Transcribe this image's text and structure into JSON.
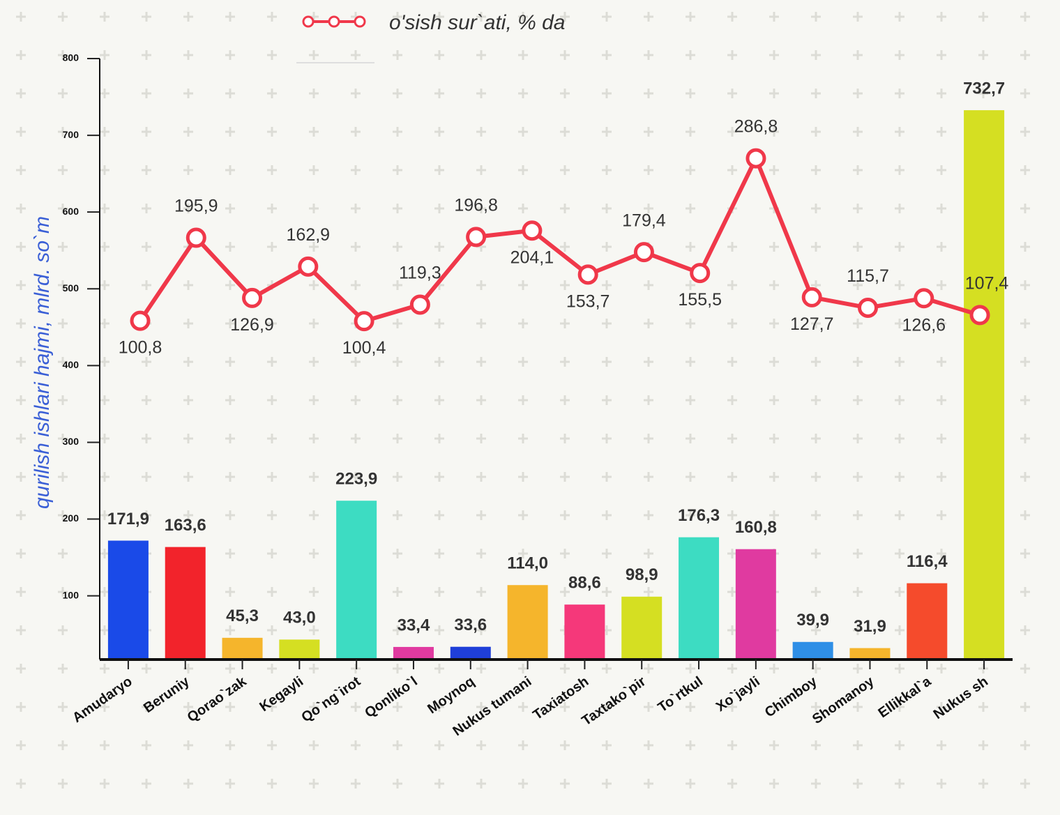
{
  "chart_data": {
    "type": "bar_line",
    "y_axis_label": "qurilish ishlari hajmi, mlrd. so`m",
    "categories": [
      "Amudaryo",
      "Beruniy",
      "Qorao`zak",
      "Kegayli",
      "Qo`ng`irot",
      "Qonliko`l",
      "Moynoq",
      "Nukus tumani",
      "Taxiatosh",
      "Taxtako`pir",
      "To`rtkul",
      "Xo`jayli",
      "Chimboy",
      "Shomanoy",
      "Ellikkal`a",
      "Nukus sh"
    ],
    "ylim": [
      17,
      800
    ],
    "yticks": [
      100,
      200,
      300,
      400,
      500,
      600,
      700,
      800
    ],
    "y2lim": [
      -287,
      401
    ],
    "legend": "top",
    "series": [
      {
        "type": "bar",
        "colors": [
          "#1a4ae8",
          "#f2232b",
          "#f5b52c",
          "#d5df22",
          "#3ddcc2",
          "#e03aa0",
          "#1f3fd8",
          "#f5b52c",
          "#f5387a",
          "#d5df22",
          "#3ddcc2",
          "#e03aa0",
          "#2f8fe6",
          "#f5b52c",
          "#f54b2c",
          "#d5df22"
        ],
        "values": [
          171.9,
          163.6,
          45.3,
          43.0,
          223.9,
          33.4,
          33.6,
          114.0,
          88.6,
          98.9,
          176.3,
          160.8,
          39.9,
          31.9,
          116.4,
          732.7
        ],
        "value_labels": [
          "171,9",
          "163,6",
          "45,3",
          "43,0",
          "223,9",
          "33,4",
          "33,6",
          "114,0",
          "88,6",
          "98,9",
          "176,3",
          "160,8",
          "39,9",
          "31,9",
          "116,4",
          "732,7"
        ]
      },
      {
        "type": "line",
        "name": "o'sish sur`ati, % da",
        "color": "#f0384a",
        "axis": "y2",
        "values": [
          100.8,
          195.9,
          126.9,
          162.9,
          100.4,
          119.3,
          196.8,
          204.1,
          153.7,
          179.4,
          155.5,
          286.8,
          127.7,
          115.7,
          126.6,
          107.4
        ],
        "value_labels": [
          "100,8",
          "195,9",
          "126,9",
          "162,9",
          "100,4",
          "119,3",
          "196,8",
          "204,1",
          "153,7",
          "179,4",
          "155,5",
          "286,8",
          "127,7",
          "115,7",
          "126,6",
          "107,4"
        ]
      }
    ]
  }
}
